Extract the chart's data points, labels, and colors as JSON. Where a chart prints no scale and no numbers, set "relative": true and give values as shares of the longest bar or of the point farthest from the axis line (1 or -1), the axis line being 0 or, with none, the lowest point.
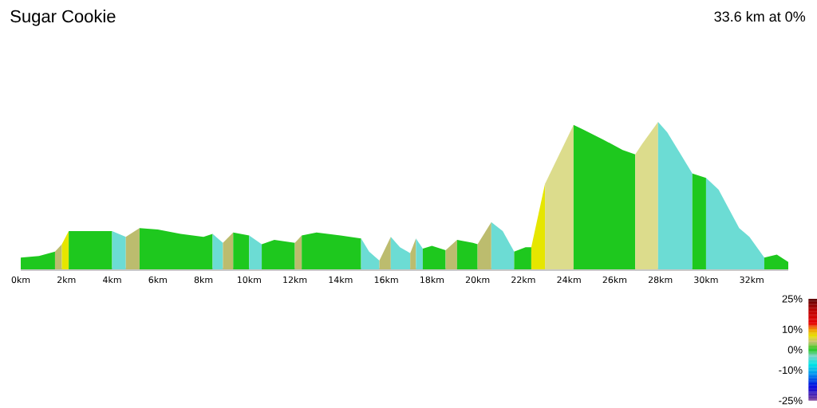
{
  "chart_data": {
    "type": "area",
    "title": "Sugar Cookie",
    "annotations": [
      "33.6 km at 0%"
    ],
    "relative": true,
    "series": [
      {
        "color": "#1ec81e",
        "x": [
          0,
          0.8,
          1.5
        ],
        "values": [
          0.08,
          0.09,
          0.12
        ]
      },
      {
        "color": "#bcbc6e",
        "x": [
          1.5,
          1.8
        ],
        "values": [
          0.12,
          0.17
        ]
      },
      {
        "color": "#e6e600",
        "x": [
          1.8,
          2.1
        ],
        "values": [
          0.17,
          0.26
        ]
      },
      {
        "color": "#1ec81e",
        "x": [
          2.1,
          3.0,
          4.0
        ],
        "values": [
          0.26,
          0.26,
          0.26
        ]
      },
      {
        "color": "#6cdcd4",
        "x": [
          4.0,
          4.6
        ],
        "values": [
          0.26,
          0.22
        ]
      },
      {
        "color": "#bcbc6e",
        "x": [
          4.6,
          5.2
        ],
        "values": [
          0.22,
          0.28
        ]
      },
      {
        "color": "#1ec81e",
        "x": [
          5.2,
          6.0,
          7.0,
          8.0,
          8.4
        ],
        "values": [
          0.28,
          0.27,
          0.24,
          0.22,
          0.24
        ]
      },
      {
        "color": "#6cdcd4",
        "x": [
          8.4,
          8.85
        ],
        "values": [
          0.24,
          0.18
        ]
      },
      {
        "color": "#bcbc6e",
        "x": [
          8.85,
          9.3
        ],
        "values": [
          0.18,
          0.25
        ]
      },
      {
        "color": "#1ec81e",
        "x": [
          9.3,
          10.0
        ],
        "values": [
          0.25,
          0.23
        ]
      },
      {
        "color": "#6cdcd4",
        "x": [
          10.0,
          10.55
        ],
        "values": [
          0.23,
          0.17
        ]
      },
      {
        "color": "#1ec81e",
        "x": [
          10.55,
          11.1,
          12.0
        ],
        "values": [
          0.17,
          0.2,
          0.18
        ]
      },
      {
        "color": "#bcbc6e",
        "x": [
          12.0,
          12.3
        ],
        "values": [
          0.18,
          0.23
        ]
      },
      {
        "color": "#1ec81e",
        "x": [
          12.3,
          12.95,
          14.0,
          14.9
        ],
        "values": [
          0.23,
          0.25,
          0.23,
          0.21
        ]
      },
      {
        "color": "#6cdcd4",
        "x": [
          14.9,
          15.25,
          15.7
        ],
        "values": [
          0.21,
          0.12,
          0.06
        ]
      },
      {
        "color": "#bcbc6e",
        "x": [
          15.7,
          16.2
        ],
        "values": [
          0.06,
          0.22
        ]
      },
      {
        "color": "#6cdcd4",
        "x": [
          16.2,
          16.6,
          17.05
        ],
        "values": [
          0.22,
          0.15,
          0.11
        ]
      },
      {
        "color": "#bcbc6e",
        "x": [
          17.05,
          17.3
        ],
        "values": [
          0.11,
          0.21
        ]
      },
      {
        "color": "#6cdcd4",
        "x": [
          17.3,
          17.6
        ],
        "values": [
          0.21,
          0.14
        ]
      },
      {
        "color": "#1ec81e",
        "x": [
          17.6,
          18.0,
          18.6
        ],
        "values": [
          0.14,
          0.16,
          0.13
        ]
      },
      {
        "color": "#bcbc6e",
        "x": [
          18.6,
          19.1
        ],
        "values": [
          0.13,
          0.2
        ]
      },
      {
        "color": "#1ec81e",
        "x": [
          19.1,
          19.8,
          20.0
        ],
        "values": [
          0.2,
          0.18,
          0.17
        ]
      },
      {
        "color": "#bcbc6e",
        "x": [
          20.0,
          20.6
        ],
        "values": [
          0.17,
          0.32
        ]
      },
      {
        "color": "#6cdcd4",
        "x": [
          20.6,
          21.1,
          21.6
        ],
        "values": [
          0.32,
          0.26,
          0.12
        ]
      },
      {
        "color": "#1ec81e",
        "x": [
          21.6,
          22.1,
          22.35
        ],
        "values": [
          0.12,
          0.15,
          0.15
        ]
      },
      {
        "color": "#e6e600",
        "x": [
          22.35,
          22.95
        ],
        "values": [
          0.15,
          0.58
        ]
      },
      {
        "color": "#dcdc8c",
        "x": [
          22.95,
          24.2
        ],
        "values": [
          0.58,
          0.98
        ]
      },
      {
        "color": "#1ec81e",
        "x": [
          24.2,
          24.6,
          25.5,
          26.35,
          26.9
        ],
        "values": [
          0.98,
          0.95,
          0.88,
          0.81,
          0.78
        ]
      },
      {
        "color": "#dcdc8c",
        "x": [
          26.9,
          27.2,
          27.9
        ],
        "values": [
          0.78,
          0.85,
          1
        ]
      },
      {
        "color": "#6cdcd4",
        "x": [
          27.9,
          28.3,
          28.85,
          29.4
        ],
        "values": [
          1,
          0.93,
          0.79,
          0.65
        ]
      },
      {
        "color": "#1ec81e",
        "x": [
          29.4,
          30.0
        ],
        "values": [
          0.65,
          0.62
        ]
      },
      {
        "color": "#6cdcd4",
        "x": [
          30.0,
          30.55,
          31.45,
          31.9,
          32.55
        ],
        "values": [
          0.62,
          0.54,
          0.28,
          0.22,
          0.08
        ]
      },
      {
        "color": "#1ec81e",
        "x": [
          32.55,
          33.1,
          33.6
        ],
        "values": [
          0.08,
          0.1,
          0.05
        ]
      }
    ],
    "xlim": [
      0,
      33.6
    ],
    "xticks": [
      {
        "value": 0,
        "label": "0km"
      },
      {
        "value": 2,
        "label": "2km"
      },
      {
        "value": 4,
        "label": "4km"
      },
      {
        "value": 6,
        "label": "6km"
      },
      {
        "value": 8,
        "label": "8km"
      },
      {
        "value": 10,
        "label": "10km"
      },
      {
        "value": 12,
        "label": "12km"
      },
      {
        "value": 14,
        "label": "14km"
      },
      {
        "value": 16,
        "label": "16km"
      },
      {
        "value": 18,
        "label": "18km"
      },
      {
        "value": 20,
        "label": "20km"
      },
      {
        "value": 22,
        "label": "22km"
      },
      {
        "value": 24,
        "label": "24km"
      },
      {
        "value": 26,
        "label": "26km"
      },
      {
        "value": 28,
        "label": "28km"
      },
      {
        "value": 30,
        "label": "30km"
      },
      {
        "value": 32,
        "label": "32km"
      }
    ],
    "clim": [
      -25,
      25
    ],
    "cticks": [
      {
        "value": 25,
        "label": "25%"
      },
      {
        "value": 10,
        "label": "10%"
      },
      {
        "value": 0,
        "label": "0%"
      },
      {
        "value": -10,
        "label": "-10%"
      },
      {
        "value": -25,
        "label": "-25%"
      }
    ]
  }
}
